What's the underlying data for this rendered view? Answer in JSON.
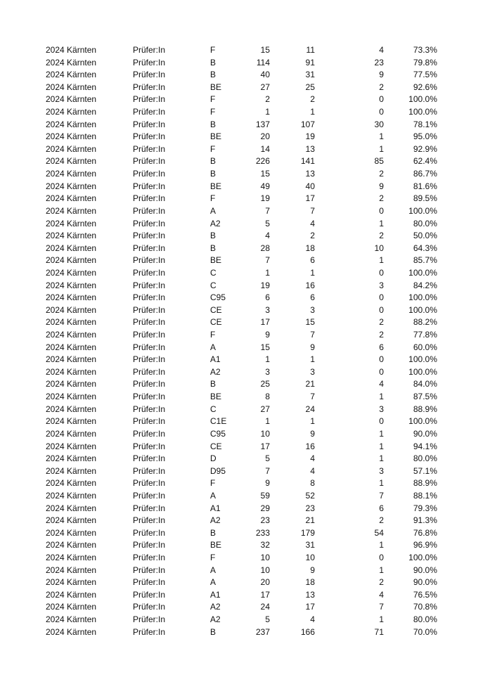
{
  "rows": [
    [
      "2024 Kärnten",
      "Prüfer:In",
      "F",
      "15",
      "11",
      "4",
      "73.3%"
    ],
    [
      "2024 Kärnten",
      "Prüfer:In",
      "B",
      "114",
      "91",
      "23",
      "79.8%"
    ],
    [
      "2024 Kärnten",
      "Prüfer:In",
      "B",
      "40",
      "31",
      "9",
      "77.5%"
    ],
    [
      "2024 Kärnten",
      "Prüfer:In",
      "BE",
      "27",
      "25",
      "2",
      "92.6%"
    ],
    [
      "2024 Kärnten",
      "Prüfer:In",
      "F",
      "2",
      "2",
      "0",
      "100.0%"
    ],
    [
      "2024 Kärnten",
      "Prüfer:In",
      "F",
      "1",
      "1",
      "0",
      "100.0%"
    ],
    [
      "2024 Kärnten",
      "Prüfer:In",
      "B",
      "137",
      "107",
      "30",
      "78.1%"
    ],
    [
      "2024 Kärnten",
      "Prüfer:In",
      "BE",
      "20",
      "19",
      "1",
      "95.0%"
    ],
    [
      "2024 Kärnten",
      "Prüfer:In",
      "F",
      "14",
      "13",
      "1",
      "92.9%"
    ],
    [
      "2024 Kärnten",
      "Prüfer:In",
      "B",
      "226",
      "141",
      "85",
      "62.4%"
    ],
    [
      "2024 Kärnten",
      "Prüfer:In",
      "B",
      "15",
      "13",
      "2",
      "86.7%"
    ],
    [
      "2024 Kärnten",
      "Prüfer:In",
      "BE",
      "49",
      "40",
      "9",
      "81.6%"
    ],
    [
      "2024 Kärnten",
      "Prüfer:In",
      "F",
      "19",
      "17",
      "2",
      "89.5%"
    ],
    [
      "2024 Kärnten",
      "Prüfer:In",
      "A",
      "7",
      "7",
      "0",
      "100.0%"
    ],
    [
      "2024 Kärnten",
      "Prüfer:In",
      "A2",
      "5",
      "4",
      "1",
      "80.0%"
    ],
    [
      "2024 Kärnten",
      "Prüfer:In",
      "B",
      "4",
      "2",
      "2",
      "50.0%"
    ],
    [
      "2024 Kärnten",
      "Prüfer:In",
      "B",
      "28",
      "18",
      "10",
      "64.3%"
    ],
    [
      "2024 Kärnten",
      "Prüfer:In",
      "BE",
      "7",
      "6",
      "1",
      "85.7%"
    ],
    [
      "2024 Kärnten",
      "Prüfer:In",
      "C",
      "1",
      "1",
      "0",
      "100.0%"
    ],
    [
      "2024 Kärnten",
      "Prüfer:In",
      "C",
      "19",
      "16",
      "3",
      "84.2%"
    ],
    [
      "2024 Kärnten",
      "Prüfer:In",
      "C95",
      "6",
      "6",
      "0",
      "100.0%"
    ],
    [
      "2024 Kärnten",
      "Prüfer:In",
      "CE",
      "3",
      "3",
      "0",
      "100.0%"
    ],
    [
      "2024 Kärnten",
      "Prüfer:In",
      "CE",
      "17",
      "15",
      "2",
      "88.2%"
    ],
    [
      "2024 Kärnten",
      "Prüfer:In",
      "F",
      "9",
      "7",
      "2",
      "77.8%"
    ],
    [
      "2024 Kärnten",
      "Prüfer:In",
      "A",
      "15",
      "9",
      "6",
      "60.0%"
    ],
    [
      "2024 Kärnten",
      "Prüfer:In",
      "A1",
      "1",
      "1",
      "0",
      "100.0%"
    ],
    [
      "2024 Kärnten",
      "Prüfer:In",
      "A2",
      "3",
      "3",
      "0",
      "100.0%"
    ],
    [
      "2024 Kärnten",
      "Prüfer:In",
      "B",
      "25",
      "21",
      "4",
      "84.0%"
    ],
    [
      "2024 Kärnten",
      "Prüfer:In",
      "BE",
      "8",
      "7",
      "1",
      "87.5%"
    ],
    [
      "2024 Kärnten",
      "Prüfer:In",
      "C",
      "27",
      "24",
      "3",
      "88.9%"
    ],
    [
      "2024 Kärnten",
      "Prüfer:In",
      "C1E",
      "1",
      "1",
      "0",
      "100.0%"
    ],
    [
      "2024 Kärnten",
      "Prüfer:In",
      "C95",
      "10",
      "9",
      "1",
      "90.0%"
    ],
    [
      "2024 Kärnten",
      "Prüfer:In",
      "CE",
      "17",
      "16",
      "1",
      "94.1%"
    ],
    [
      "2024 Kärnten",
      "Prüfer:In",
      "D",
      "5",
      "4",
      "1",
      "80.0%"
    ],
    [
      "2024 Kärnten",
      "Prüfer:In",
      "D95",
      "7",
      "4",
      "3",
      "57.1%"
    ],
    [
      "2024 Kärnten",
      "Prüfer:In",
      "F",
      "9",
      "8",
      "1",
      "88.9%"
    ],
    [
      "2024 Kärnten",
      "Prüfer:In",
      "A",
      "59",
      "52",
      "7",
      "88.1%"
    ],
    [
      "2024 Kärnten",
      "Prüfer:In",
      "A1",
      "29",
      "23",
      "6",
      "79.3%"
    ],
    [
      "2024 Kärnten",
      "Prüfer:In",
      "A2",
      "23",
      "21",
      "2",
      "91.3%"
    ],
    [
      "2024 Kärnten",
      "Prüfer:In",
      "B",
      "233",
      "179",
      "54",
      "76.8%"
    ],
    [
      "2024 Kärnten",
      "Prüfer:In",
      "BE",
      "32",
      "31",
      "1",
      "96.9%"
    ],
    [
      "2024 Kärnten",
      "Prüfer:In",
      "F",
      "10",
      "10",
      "0",
      "100.0%"
    ],
    [
      "2024 Kärnten",
      "Prüfer:In",
      "A",
      "10",
      "9",
      "1",
      "90.0%"
    ],
    [
      "2024 Kärnten",
      "Prüfer:In",
      "A",
      "20",
      "18",
      "2",
      "90.0%"
    ],
    [
      "2024 Kärnten",
      "Prüfer:In",
      "A1",
      "17",
      "13",
      "4",
      "76.5%"
    ],
    [
      "2024 Kärnten",
      "Prüfer:In",
      "A2",
      "24",
      "17",
      "7",
      "70.8%"
    ],
    [
      "2024 Kärnten",
      "Prüfer:In",
      "A2",
      "5",
      "4",
      "1",
      "80.0%"
    ],
    [
      "2024 Kärnten",
      "Prüfer:In",
      "B",
      "237",
      "166",
      "71",
      "70.0%"
    ]
  ]
}
